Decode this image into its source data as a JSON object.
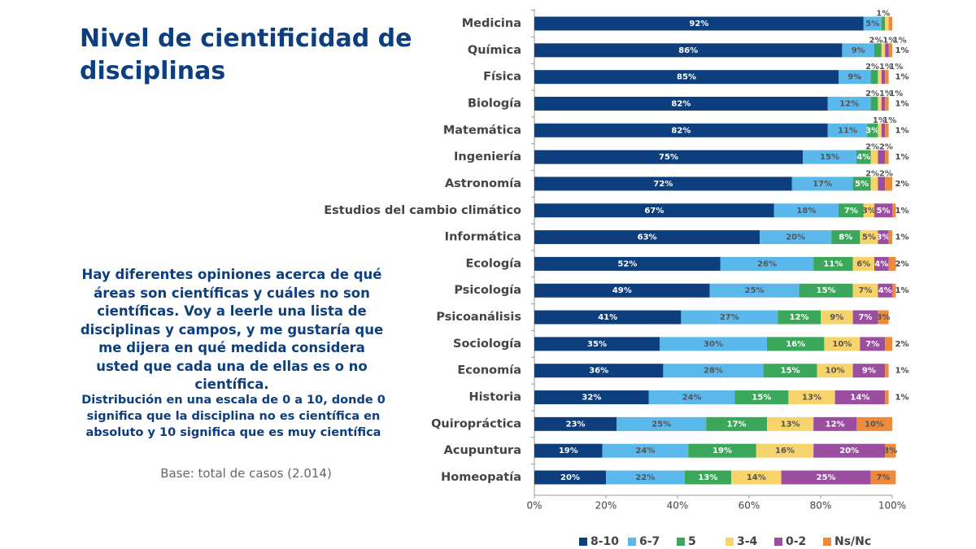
{
  "chart_data": {
    "type": "stacked-bar",
    "orientation": "horizontal",
    "title": "Nivel de cientificidad de disciplinas",
    "question": "Hay diferentes opiniones acerca de qué áreas son científicas y cuáles no son científicas. Voy a leerle una lista de disciplinas y campos, y me gustaría que me dijera en qué medida considera usted que cada una de ellas es o no científica.",
    "note": "Distribución en una escala de 0 a 10, donde 0 significa que la disciplina no es científica en absoluto y 10 significa que es muy científica",
    "base": "Base: total de casos  (2.014)",
    "categories": [
      "Medicina",
      "Química",
      "Física",
      "Biología",
      "Matemática",
      "Ingeniería",
      "Astronomía",
      "Estudios del cambio climático",
      "Informática",
      "Ecología",
      "Psicología",
      "Psicoanálisis",
      "Sociología",
      "Economía",
      "Historia",
      "Quiropráctica",
      "Acupuntura",
      "Homeopatía"
    ],
    "series": [
      {
        "name": "8-10",
        "color": "#0d3f7f",
        "values": [
          92,
          86,
          85,
          82,
          82,
          75,
          72,
          67,
          63,
          52,
          49,
          41,
          35,
          36,
          32,
          23,
          19,
          20
        ],
        "value_labels": [
          "92%",
          "86%",
          "85%",
          "82%",
          "82%",
          "75%",
          "72%",
          "67%",
          "63%",
          "52%",
          "49%",
          "41%",
          "35%",
          "36%",
          "32%",
          "23%",
          "19%",
          "20%"
        ]
      },
      {
        "name": "6-7",
        "color": "#5bb8ec",
        "values": [
          5,
          9,
          9,
          12,
          11,
          15,
          17,
          18,
          20,
          26,
          25,
          27,
          30,
          28,
          24,
          25,
          24,
          22
        ],
        "value_labels": [
          "5%",
          "9%",
          "9%",
          "12%",
          "11%",
          "15%",
          "17%",
          "18%",
          "20%",
          "26%",
          "25%",
          "27%",
          "30%",
          "28%",
          "24%",
          "25%",
          "24%",
          "22%"
        ]
      },
      {
        "name": "5",
        "color": "#3aa75a",
        "values": [
          1,
          2,
          2,
          2,
          3,
          4,
          5,
          7,
          8,
          11,
          15,
          12,
          16,
          15,
          15,
          17,
          19,
          13
        ],
        "value_labels": [
          "1%",
          "2%",
          "2%",
          "2%",
          "3%",
          "4%",
          "5%",
          "7%",
          "8%",
          "11%",
          "15%",
          "12%",
          "16%",
          "15%",
          "15%",
          "17%",
          "19%",
          "13%"
        ]
      },
      {
        "name": "3-4",
        "color": "#f6d36b",
        "values": [
          1,
          1,
          1,
          1,
          1,
          2,
          2,
          3,
          5,
          6,
          7,
          9,
          10,
          10,
          13,
          13,
          16,
          14
        ],
        "value_labels": [
          null,
          "1%",
          "1%",
          "1%",
          "1%",
          "2%",
          "2%",
          "3%",
          "5%",
          "6%",
          "7%",
          "9%",
          "10%",
          "10%",
          "13%",
          "13%",
          "16%",
          "14%"
        ]
      },
      {
        "name": "0-2",
        "color": "#9b4ea0",
        "values": [
          0,
          1,
          1,
          1,
          1,
          2,
          2,
          5,
          3,
          4,
          4,
          7,
          7,
          9,
          14,
          12,
          20,
          25
        ],
        "value_labels": [
          null,
          "1%",
          "1%",
          "1%",
          "1%",
          "2%",
          "2%",
          "5%",
          "3%",
          "4%",
          "4%",
          "7%",
          "7%",
          "9%",
          "14%",
          "12%",
          "20%",
          "25%"
        ]
      },
      {
        "name": "Ns/Nc",
        "color": "#ee8a3c",
        "values": [
          1,
          1,
          1,
          1,
          1,
          1,
          2,
          1,
          1,
          2,
          1,
          3,
          2,
          1,
          1,
          10,
          3,
          7
        ],
        "value_labels": [
          null,
          "1%",
          "1%",
          "1%",
          "1%",
          "1%",
          "2%",
          "1%",
          "1%",
          "2%",
          "1%",
          "3%",
          "2%",
          "1%",
          "1%",
          "10%",
          "3%",
          "7%"
        ]
      }
    ],
    "xlim": [
      0,
      100
    ],
    "xticks": [
      {
        "value": 0,
        "label": "0%"
      },
      {
        "value": 20,
        "label": "20%"
      },
      {
        "value": 40,
        "label": "40%"
      },
      {
        "value": 60,
        "label": "60%"
      },
      {
        "value": 80,
        "label": "80%"
      },
      {
        "value": 100,
        "label": "100%"
      }
    ],
    "legend": "bottom"
  }
}
